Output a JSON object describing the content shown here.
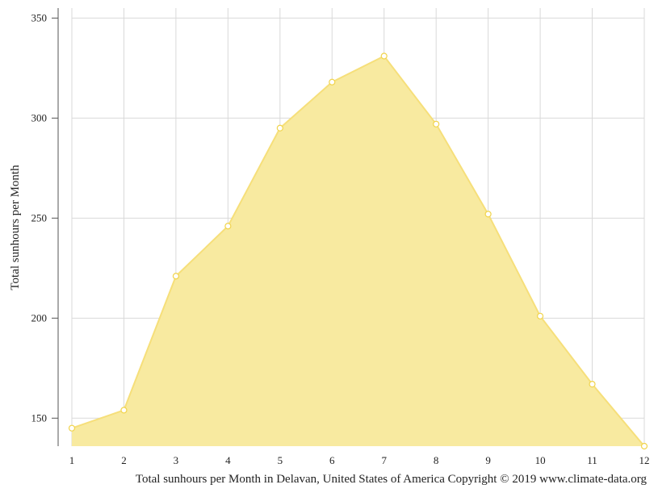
{
  "chart_data": {
    "type": "area",
    "title": "",
    "xlabel": "",
    "ylabel": "Total sunhours per Month",
    "x": [
      1,
      2,
      3,
      4,
      5,
      6,
      7,
      8,
      9,
      10,
      11,
      12
    ],
    "series": [
      {
        "values": [
          145,
          154,
          221,
          246,
          295,
          318,
          331,
          297,
          252,
          201,
          167,
          136
        ]
      }
    ],
    "xlim": [
      1,
      12
    ],
    "ylim": [
      136,
      355
    ],
    "yticks": [
      150,
      200,
      250,
      300,
      350
    ],
    "xticks": [
      1,
      2,
      3,
      4,
      5,
      6,
      7,
      8,
      9,
      10,
      11,
      12
    ],
    "grid": true,
    "caption": "Total sunhours per Month in Delavan, United States of America Copyright © 2019 www.climate-data.org",
    "colors": {
      "fill": "#f8eaa0",
      "line": "#f6df7a",
      "marker_stroke": "#f1d44c",
      "marker_fill": "#ffffff",
      "grid": "#d9d9d9",
      "axis": "#555555"
    }
  }
}
